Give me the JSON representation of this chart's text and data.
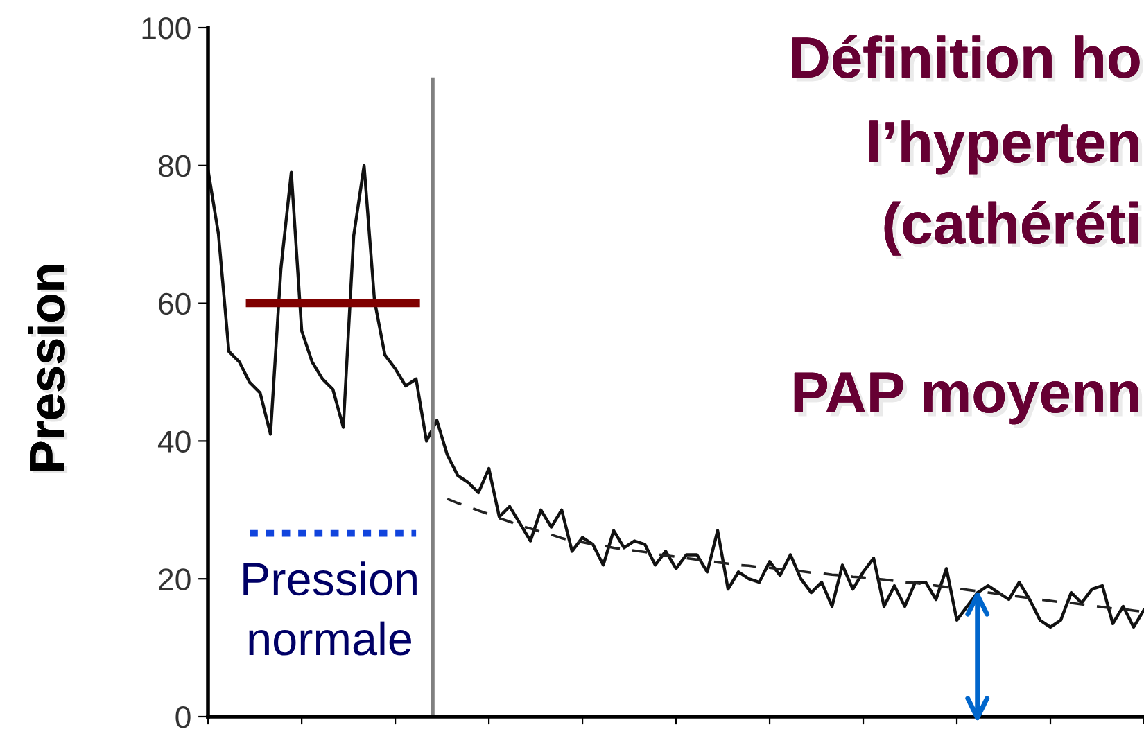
{
  "chart_data": {
    "type": "line",
    "ylabel": "Pression",
    "annotations": [
      "Définition ho",
      "l’hyperten",
      "(cathéréti",
      "PAP moyenn",
      "Pression\nnormale"
    ],
    "categories": [
      null,
      null,
      null,
      null,
      null,
      null,
      null,
      null,
      null,
      null,
      null,
      null,
      null,
      null,
      null,
      null,
      null,
      null,
      null,
      null,
      null,
      null,
      null,
      null,
      null,
      null,
      null,
      null,
      null,
      null,
      null,
      null,
      null,
      null,
      null,
      null,
      null,
      null,
      null,
      null,
      null,
      null,
      null,
      null,
      null,
      null,
      null,
      null,
      null,
      null,
      null,
      null,
      null,
      null,
      null,
      null,
      null,
      null,
      null,
      null,
      null,
      null,
      null,
      null,
      null,
      null,
      null,
      null,
      null,
      null,
      null,
      null,
      null,
      null,
      null,
      null,
      null,
      null,
      null,
      null,
      null,
      null,
      null,
      null,
      null,
      null,
      null,
      null,
      null,
      null,
      null
    ],
    "ylim": [
      0,
      100
    ],
    "yticks": [
      0,
      20,
      40,
      60,
      80,
      100
    ],
    "grid": false,
    "legend": false,
    "tick_labels": "y",
    "series": [
      {
        "color": "#111111",
        "line_style": "solid",
        "values": [
          79.3,
          70,
          53,
          51.5,
          48.5,
          47,
          41,
          65,
          79,
          56,
          51.5,
          49,
          47.5,
          42,
          69.8,
          80,
          60.4,
          52.5,
          50.5,
          48,
          49,
          40,
          43,
          38,
          35,
          34,
          32.5,
          36,
          29,
          30.5,
          28,
          25.5,
          30,
          27.5,
          30,
          24,
          26,
          25,
          22,
          27,
          24.5,
          25.5,
          25,
          22,
          24,
          21.5,
          23.5,
          23.5,
          21,
          27,
          18.5,
          21,
          20,
          19.5,
          22.5,
          20.5,
          23.5,
          20,
          18,
          19.5,
          16,
          22,
          18.5,
          21,
          23,
          16,
          19,
          16,
          19.5,
          19.5,
          17,
          21.5,
          14,
          16,
          18,
          19,
          18,
          17,
          19.5,
          17,
          14,
          13,
          14,
          18,
          16.5,
          18.5,
          19,
          13.5,
          16,
          13,
          15.5
        ]
      },
      {
        "color": "#222222",
        "line_style": "dashed",
        "values": [
          null,
          null,
          null,
          null,
          null,
          null,
          null,
          null,
          null,
          null,
          null,
          null,
          null,
          null,
          null,
          null,
          null,
          null,
          null,
          null,
          null,
          null,
          null,
          31.6,
          31.0,
          30.5,
          29.9,
          29.4,
          28.8,
          28.3,
          27.7,
          27.3,
          26.8,
          26.4,
          25.9,
          25.5,
          25.3,
          25.0,
          24.8,
          24.5,
          24.3,
          24.1,
          23.9,
          23.6,
          23.4,
          23.2,
          23.0,
          22.8,
          22.6,
          22.4,
          22.2,
          22.0,
          21.9,
          21.7,
          21.6,
          21.4,
          21.2,
          21.1,
          20.9,
          20.8,
          20.6,
          20.5,
          20.3,
          20.2,
          20.0,
          19.9,
          19.7,
          19.5,
          19.4,
          19.2,
          19.0,
          18.8,
          18.6,
          18.4,
          18.2,
          18.0,
          17.8,
          17.6,
          17.4,
          17.2,
          17.0,
          16.8,
          16.6,
          16.5,
          16.3,
          16.1,
          15.9,
          15.7,
          15.6,
          15.4,
          15.2
        ]
      },
      {
        "color": "#800000",
        "line_style": "solid",
        "values": [
          null,
          null,
          null,
          null,
          60,
          60,
          60,
          60,
          60,
          60,
          60,
          60,
          60,
          60,
          60,
          60,
          60,
          60,
          60,
          60,
          60,
          null,
          null,
          null,
          null,
          null,
          null,
          null,
          null,
          null,
          null,
          null,
          null,
          null,
          null,
          null,
          null,
          null,
          null,
          null,
          null,
          null,
          null,
          null,
          null,
          null,
          null,
          null,
          null,
          null,
          null,
          null,
          null,
          null,
          null,
          null,
          null,
          null,
          null,
          null,
          null,
          null,
          null,
          null,
          null,
          null,
          null,
          null,
          null,
          null,
          null,
          null,
          null,
          null,
          null,
          null,
          null,
          null,
          null,
          null,
          null,
          null,
          null,
          null,
          null,
          null,
          null,
          null,
          null,
          null,
          null
        ]
      },
      {
        "color": "#1144dd",
        "line_style": "dotted",
        "values": [
          null,
          null,
          null,
          null,
          26.6,
          26.6,
          26.6,
          26.6,
          26.6,
          26.6,
          26.6,
          26.6,
          26.6,
          26.6,
          26.6,
          26.6,
          26.6,
          26.6,
          26.6,
          26.6,
          26.6,
          null,
          null,
          null,
          null,
          null,
          null,
          null,
          null,
          null,
          null,
          null,
          null,
          null,
          null,
          null,
          null,
          null,
          null,
          null,
          null,
          null,
          null,
          null,
          null,
          null,
          null,
          null,
          null,
          null,
          null,
          null,
          null,
          null,
          null,
          null,
          null,
          null,
          null,
          null,
          null,
          null,
          null,
          null,
          null,
          null,
          null,
          null,
          null,
          null,
          null,
          null,
          null,
          null,
          null,
          null,
          null,
          null,
          null,
          null,
          null,
          null,
          null,
          null,
          null,
          null,
          null,
          null,
          null,
          null,
          null
        ]
      }
    ]
  }
}
